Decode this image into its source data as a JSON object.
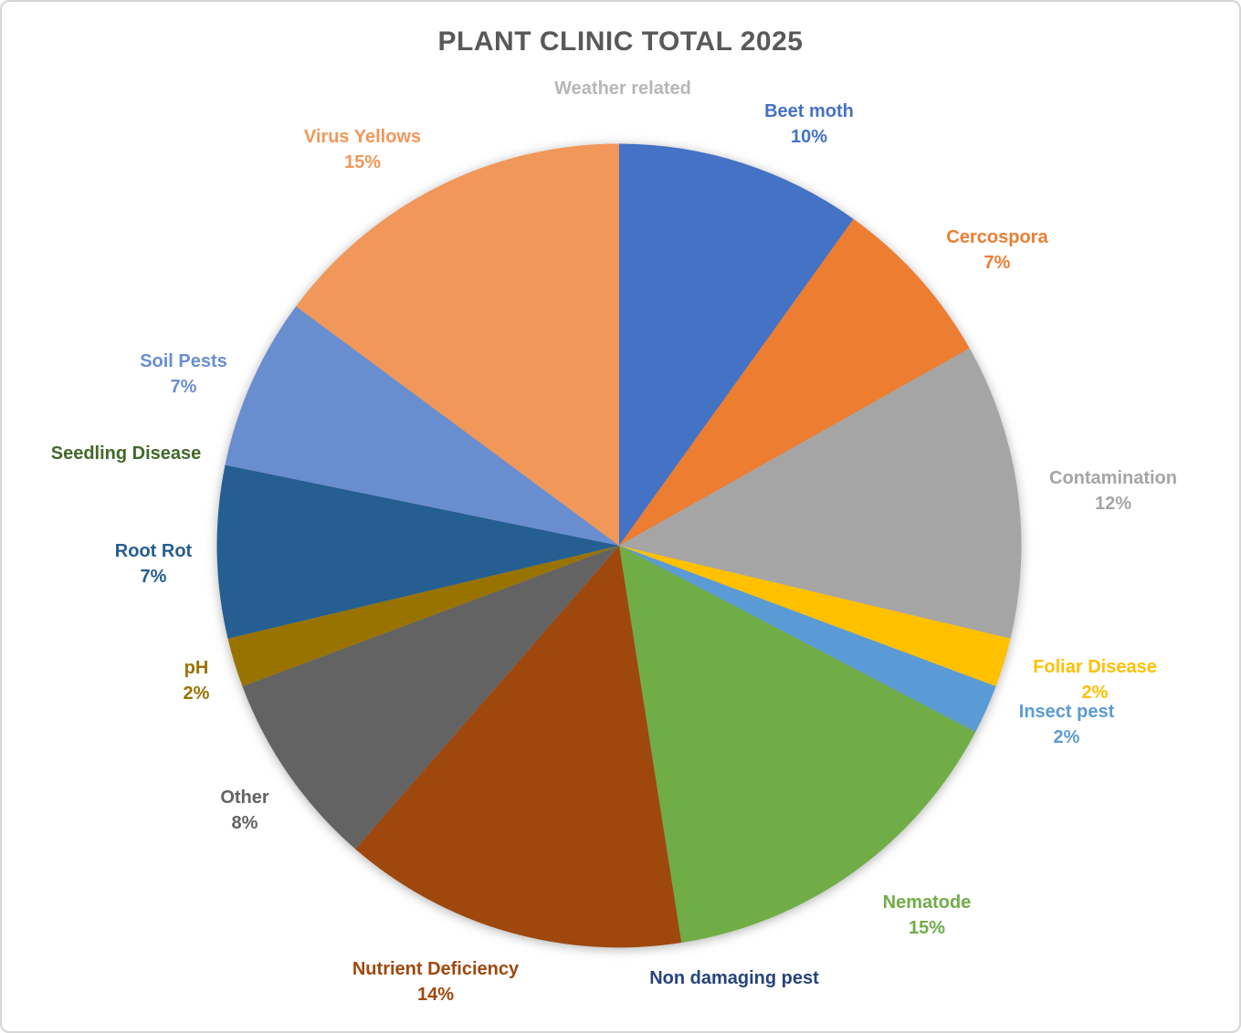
{
  "chart_data": {
    "type": "pie",
    "title": "PLANT CLINIC TOTAL 2025",
    "title_color": "#595959",
    "direction": "clockwise",
    "start_angle_deg": 0,
    "legend": "none",
    "data_labels": "outside-end, category name + percent, text colored to match slice",
    "slices": [
      {
        "label": "Beet moth",
        "percent": 10,
        "percent_label": "10%",
        "color": "#4472C4"
      },
      {
        "label": "Cercospora",
        "percent": 7,
        "percent_label": "7%",
        "color": "#ED7D31"
      },
      {
        "label": "Contamination",
        "percent": 12,
        "percent_label": "12%",
        "color": "#A5A5A5"
      },
      {
        "label": "Foliar Disease",
        "percent": 2,
        "percent_label": "2%",
        "color": "#FFC000"
      },
      {
        "label": "Insect pest",
        "percent": 2,
        "percent_label": "2%",
        "color": "#5B9BD5"
      },
      {
        "label": "Nematode",
        "percent": 15,
        "percent_label": "15%",
        "color": "#70AD47"
      },
      {
        "label": "Non damaging pest",
        "percent": 0,
        "percent_label": "",
        "color": "#264478"
      },
      {
        "label": "Nutrient Deficiency",
        "percent": 14,
        "percent_label": "14%",
        "color": "#9E480E"
      },
      {
        "label": "Other",
        "percent": 8,
        "percent_label": "8%",
        "color": "#636363"
      },
      {
        "label": "pH",
        "percent": 2,
        "percent_label": "2%",
        "color": "#997300"
      },
      {
        "label": "Root Rot",
        "percent": 7,
        "percent_label": "7%",
        "color": "#255E91"
      },
      {
        "label": "Seedling Disease",
        "percent": 0,
        "percent_label": "",
        "color": "#43682B"
      },
      {
        "label": "Soil Pests",
        "percent": 7,
        "percent_label": "7%",
        "color": "#698ED0"
      },
      {
        "label": "Virus Yellows",
        "percent": 15,
        "percent_label": "15%",
        "color": "#F1975A"
      },
      {
        "label": "Weather related",
        "percent": 0,
        "percent_label": "",
        "color": "#B7B7B7"
      }
    ]
  }
}
